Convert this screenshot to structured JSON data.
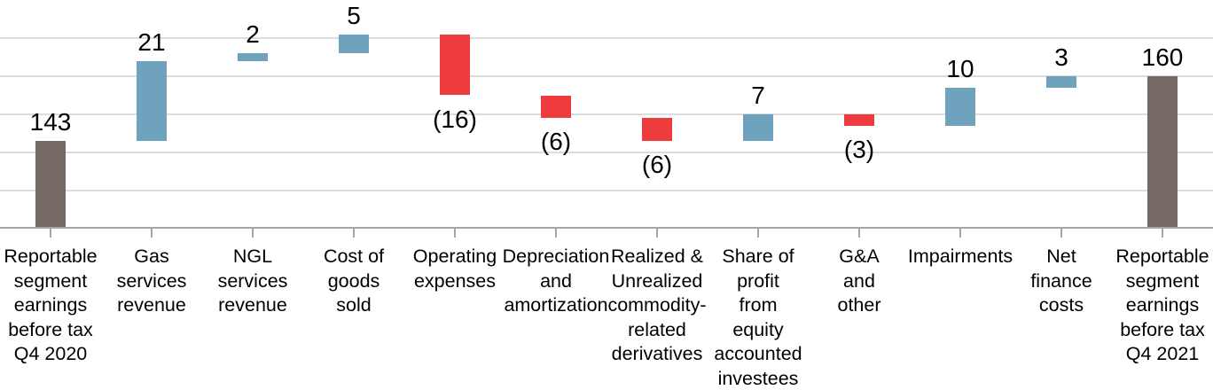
{
  "chart_data": {
    "type": "bar",
    "subtype": "waterfall",
    "title": "",
    "points": [
      {
        "label": "Reportable segment earnings before tax Q4 2020",
        "lines": [
          "Reportable",
          "segment",
          "earnings",
          "before tax",
          "Q4 2020"
        ],
        "value": 143,
        "display": "143",
        "kind": "total"
      },
      {
        "label": "Gas services revenue",
        "lines": [
          "Gas",
          "services",
          "revenue"
        ],
        "value": 21,
        "display": "21",
        "kind": "increase"
      },
      {
        "label": "NGL services revenue",
        "lines": [
          "NGL",
          "services",
          "revenue"
        ],
        "value": 2,
        "display": "2",
        "kind": "increase"
      },
      {
        "label": "Cost of goods sold",
        "lines": [
          "Cost of",
          "goods",
          "sold"
        ],
        "value": 5,
        "display": "5",
        "kind": "increase"
      },
      {
        "label": "Operating expenses",
        "lines": [
          "Operating",
          "expenses"
        ],
        "value": -16,
        "display": "(16)",
        "kind": "decrease"
      },
      {
        "label": "Depreciation and amortization",
        "lines": [
          "Depreciation",
          "and",
          "amortization"
        ],
        "value": -6,
        "display": "(6)",
        "kind": "decrease"
      },
      {
        "label": "Realized & Unrealized commodity-related derivatives",
        "lines": [
          "Realized &",
          "Unrealized",
          "commodity-",
          "related",
          "derivatives"
        ],
        "value": -6,
        "display": "(6)",
        "kind": "decrease"
      },
      {
        "label": "Share of profit from equity accounted investees",
        "lines": [
          "Share of",
          "profit",
          "from",
          "equity",
          "accounted",
          "investees"
        ],
        "value": 7,
        "display": "7",
        "kind": "increase"
      },
      {
        "label": "G&A and other",
        "lines": [
          "G&A",
          "and",
          "other"
        ],
        "value": -3,
        "display": "(3)",
        "kind": "decrease"
      },
      {
        "label": "Impairments",
        "lines": [
          "Impairments"
        ],
        "value": 10,
        "display": "10",
        "kind": "increase"
      },
      {
        "label": "Net finance costs",
        "lines": [
          "Net",
          "finance",
          "costs"
        ],
        "value": 3,
        "display": "3",
        "kind": "increase"
      },
      {
        "label": "Reportable segment earnings before tax Q4 2021",
        "lines": [
          "Reportable",
          "segment",
          "earnings",
          "before tax",
          "Q4 2021"
        ],
        "value": 160,
        "display": "160",
        "kind": "total"
      }
    ],
    "ylim": [
      120,
      180
    ],
    "gridline_values": [
      130,
      140,
      150,
      160,
      170
    ],
    "grid": true,
    "legend": false,
    "y_axis_labels_visible": false,
    "colors": {
      "total": "#756963",
      "increase": "#6fa2bd",
      "decrease": "#ee3b3d",
      "gridline": "#dcdcdc",
      "axis": "#a6a6a6",
      "text": "#000000"
    }
  }
}
